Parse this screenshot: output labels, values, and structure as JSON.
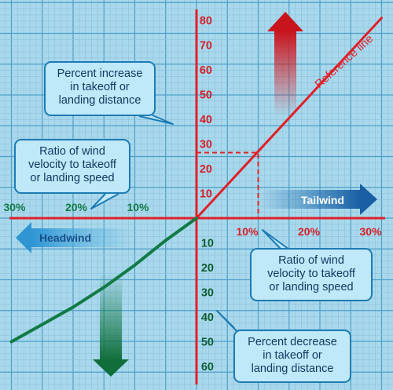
{
  "chart_data": {
    "type": "line",
    "title": "",
    "x_positive_ticks": [
      "10%",
      "20%",
      "30%"
    ],
    "x_negative_ticks": [
      "10%",
      "20%",
      "30%"
    ],
    "y_positive_ticks": [
      "10",
      "20",
      "30",
      "40",
      "50",
      "60",
      "70",
      "80"
    ],
    "y_negative_ticks": [
      "10",
      "20",
      "30",
      "40",
      "50",
      "60"
    ],
    "xlim": [
      -30,
      30
    ],
    "ylim": [
      -60,
      80
    ],
    "grid": true,
    "series": [
      {
        "name": "Reference line",
        "color": "#e02028",
        "x": [
          0,
          10,
          20,
          30
        ],
        "y": [
          0,
          27,
          54,
          81
        ]
      },
      {
        "name": "",
        "color": "#127a45",
        "x": [
          0,
          -5,
          -10,
          -15,
          -20,
          -25,
          -30
        ],
        "y": [
          0,
          -9,
          -19,
          -28,
          -36,
          -43,
          -50
        ]
      }
    ],
    "example_point": {
      "x": 10,
      "y": 26.5
    }
  },
  "labels": {
    "reference_line": "Reference line",
    "tailwind": "Tailwind",
    "headwind": "Headwind"
  },
  "callouts": {
    "increase": [
      "Percent increase",
      "in takeoff or",
      "landing distance"
    ],
    "ratio_left": [
      "Ratio of wind",
      "velocity to takeoff",
      "or landing speed"
    ],
    "ratio_right": [
      "Ratio of wind",
      "velocity to takeoff",
      "or landing speed"
    ],
    "decrease": [
      "Percent decrease",
      "in takeoff or",
      "landing distance"
    ]
  },
  "colors": {
    "background": "#a9d8ec",
    "grid_minor": "#8cc2da",
    "grid_major": "#4d9fc7",
    "axis": "#e02028",
    "tick_text": "#d4202a",
    "headwind_text": "#127a45",
    "callout_bg": "#bfe8f8",
    "callout_border": "#1d7bb3",
    "tailwind_arrow": "#1d6fb5",
    "headwind_arrow": "#2f96d3"
  }
}
